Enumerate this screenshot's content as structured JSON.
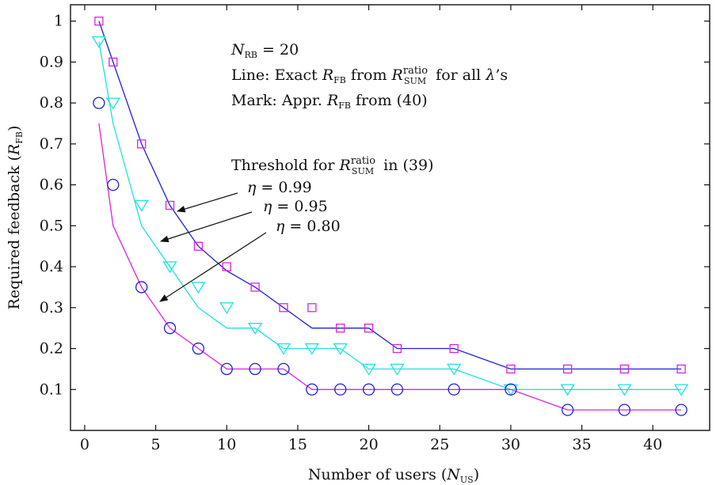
{
  "chart_data": {
    "type": "line",
    "xlabel_main": "Number of users (",
    "xlabel_sym": "N",
    "xlabel_sub": "US",
    "xlabel_close": ")",
    "ylabel_main": "Required feedback (",
    "ylabel_sym": "R",
    "ylabel_sub": "FB",
    "ylabel_close": ")",
    "xlim": [
      -1,
      44
    ],
    "ylim": [
      0,
      1.04
    ],
    "xticks": [
      0,
      5,
      10,
      15,
      20,
      25,
      30,
      35,
      40
    ],
    "yticks": [
      0.1,
      0.2,
      0.3,
      0.4,
      0.5,
      0.6,
      0.7,
      0.8,
      0.9,
      1
    ],
    "xtick_labels": [
      "0",
      "5",
      "10",
      "15",
      "20",
      "25",
      "30",
      "35",
      "40"
    ],
    "ytick_labels": [
      "0.1",
      "0.2",
      "0.3",
      "0.4",
      "0.5",
      "0.6",
      "0.7",
      "0.8",
      "0.9",
      "1"
    ],
    "grid": false,
    "lines": [
      {
        "color": "#1f1fdd",
        "x": [
          1,
          2,
          4,
          6,
          8,
          10,
          12,
          14,
          16,
          18,
          20,
          22,
          26,
          30,
          34,
          38,
          42
        ],
        "y": [
          1.0,
          0.9,
          0.7,
          0.55,
          0.45,
          0.39,
          0.35,
          0.3,
          0.25,
          0.25,
          0.25,
          0.2,
          0.2,
          0.15,
          0.15,
          0.15,
          0.15
        ]
      },
      {
        "color": "#22e0e0",
        "x": [
          1,
          2,
          4,
          6,
          8,
          10,
          12,
          14,
          16,
          18,
          20,
          22,
          26,
          30,
          34,
          38,
          42
        ],
        "y": [
          0.95,
          0.75,
          0.5,
          0.4,
          0.3,
          0.25,
          0.25,
          0.2,
          0.2,
          0.2,
          0.15,
          0.15,
          0.15,
          0.1,
          0.1,
          0.1,
          0.1
        ]
      },
      {
        "color": "#dd22dd",
        "x": [
          1,
          2,
          4,
          6,
          8,
          10,
          12,
          14,
          16,
          18,
          20,
          22,
          26,
          30,
          34,
          38,
          42
        ],
        "y": [
          0.75,
          0.5,
          0.35,
          0.25,
          0.2,
          0.15,
          0.15,
          0.15,
          0.1,
          0.1,
          0.1,
          0.1,
          0.1,
          0.1,
          0.05,
          0.05,
          0.05
        ]
      }
    ],
    "markers": [
      {
        "shape": "square",
        "color": "#dd22dd",
        "x": [
          1,
          2,
          4,
          6,
          8,
          10,
          12,
          14,
          16,
          18,
          20,
          22,
          26,
          30,
          34,
          38,
          42
        ],
        "y": [
          1.0,
          0.9,
          0.7,
          0.55,
          0.45,
          0.4,
          0.35,
          0.3,
          0.3,
          0.25,
          0.25,
          0.2,
          0.2,
          0.15,
          0.15,
          0.15,
          0.15
        ]
      },
      {
        "shape": "triangle-down",
        "color": "#22e0e0",
        "x": [
          1,
          2,
          4,
          6,
          8,
          10,
          12,
          14,
          16,
          18,
          20,
          22,
          26,
          30,
          34,
          38,
          42
        ],
        "y": [
          0.95,
          0.8,
          0.55,
          0.4,
          0.35,
          0.3,
          0.25,
          0.2,
          0.2,
          0.2,
          0.15,
          0.15,
          0.15,
          0.1,
          0.1,
          0.1,
          0.1
        ]
      },
      {
        "shape": "circle",
        "color": "#1f1fdd",
        "x": [
          1,
          2,
          4,
          6,
          8,
          10,
          12,
          14,
          16,
          18,
          20,
          22,
          26,
          30,
          34,
          38,
          42
        ],
        "y": [
          0.8,
          0.6,
          0.35,
          0.25,
          0.2,
          0.15,
          0.15,
          0.15,
          0.1,
          0.1,
          0.1,
          0.1,
          0.1,
          0.1,
          0.05,
          0.05,
          0.05
        ]
      }
    ],
    "annotations": {
      "nrb_sym": "N",
      "nrb_sub": "RB",
      "nrb_rest": " = 20",
      "line_text_1": "Line: Exact ",
      "line_sym_r": "R",
      "line_sub_fb": "FB",
      "line_text_2": " from ",
      "line_sym_r2": "R",
      "line_sup_ratio": "ratio",
      "line_sub_sum": "SUM",
      "line_text_3": " for all ",
      "line_sym_lambda": "λ",
      "line_text_4": "’s",
      "mark_text_1": "Mark: Appr. ",
      "mark_sym_r": "R",
      "mark_sub_fb": "FB",
      "mark_text_2": " from (40)",
      "thr_text_1": "Threshold for ",
      "thr_sym_r": "R",
      "thr_sup_ratio": "ratio",
      "thr_sub_sum": "SUM",
      "thr_text_2": " in (39)",
      "eta_sym": "η",
      "eta_values": [
        " = 0.99",
        " = 0.95",
        " = 0.80"
      ]
    }
  }
}
